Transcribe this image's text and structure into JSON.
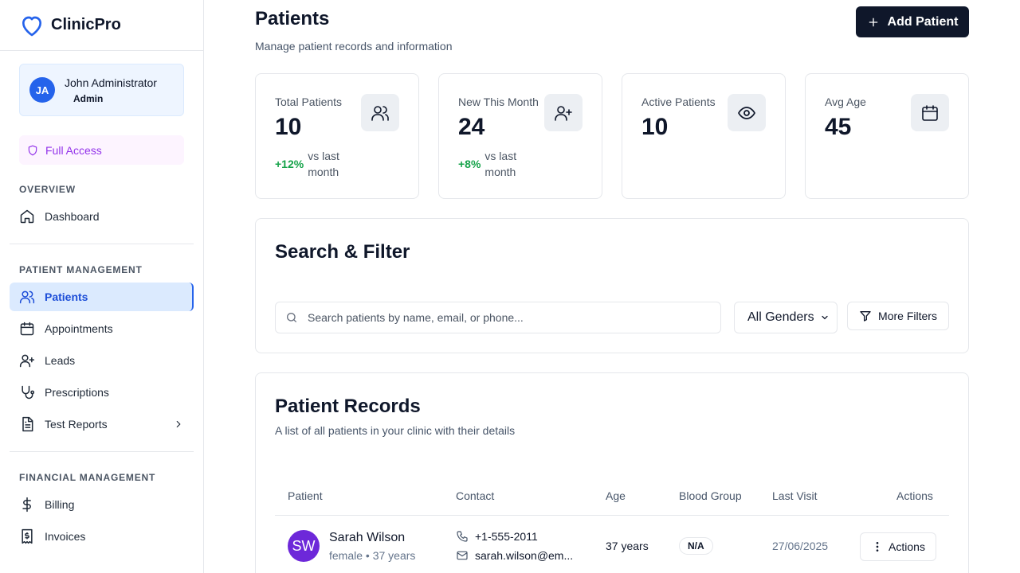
{
  "brand": {
    "name": "ClinicPro",
    "icon": "heart-icon",
    "color": "#2563eb"
  },
  "user": {
    "initials": "JA",
    "name": "John Administrator",
    "role": "Admin"
  },
  "access": {
    "label": "Full Access",
    "icon": "shield-icon"
  },
  "sidebar": {
    "sections": [
      {
        "title": "OVERVIEW"
      },
      {
        "title": "PATIENT MANAGEMENT"
      },
      {
        "title": "FINANCIAL MANAGEMENT"
      }
    ],
    "items": [
      {
        "label": "Dashboard",
        "icon": "home-icon"
      },
      {
        "label": "Patients",
        "icon": "users-icon",
        "active": true
      },
      {
        "label": "Appointments",
        "icon": "calendar-icon"
      },
      {
        "label": "Leads",
        "icon": "user-plus-icon"
      },
      {
        "label": "Prescriptions",
        "icon": "stethoscope-icon"
      },
      {
        "label": "Test Reports",
        "icon": "file-text-icon"
      },
      {
        "label": "Billing",
        "icon": "dollar-icon"
      },
      {
        "label": "Invoices",
        "icon": "receipt-icon"
      }
    ]
  },
  "header": {
    "title": "Patients",
    "subtitle": "Manage patient records and information",
    "add_button": "Add Patient"
  },
  "stats": [
    {
      "label": "Total Patients",
      "value": "10",
      "trend": "+12%",
      "trend_text": "vs last month",
      "icon": "users-icon"
    },
    {
      "label": "New This Month",
      "value": "24",
      "trend": "+8%",
      "trend_text": "vs last month",
      "icon": "user-plus-icon"
    },
    {
      "label": "Active Patients",
      "value": "10",
      "icon": "eye-icon"
    },
    {
      "label": "Avg Age",
      "value": "45",
      "icon": "calendar-icon"
    }
  ],
  "filter": {
    "title": "Search & Filter",
    "search_placeholder": "Search patients by name, email, or phone...",
    "gender_selected": "All Genders",
    "more_filters": "More Filters"
  },
  "records": {
    "title": "Patient Records",
    "subtitle": "A list of all patients in your clinic with their details",
    "columns": [
      "Patient",
      "Contact",
      "Age",
      "Blood Group",
      "Last Visit",
      "Actions"
    ],
    "rows": [
      {
        "initials": "SW",
        "name": "Sarah Wilson",
        "meta": "female • 37 years",
        "phone": "+1-555-2011",
        "email": "sarah.wilson@em...",
        "age": "37 years",
        "blood_group": "N/A",
        "last_visit": "27/06/2025",
        "action_label": "Actions"
      }
    ]
  },
  "colors": {
    "accent": "#2563eb",
    "primary_button": "#0f172a",
    "positive": "#16a34a",
    "access": "#9333ea"
  }
}
